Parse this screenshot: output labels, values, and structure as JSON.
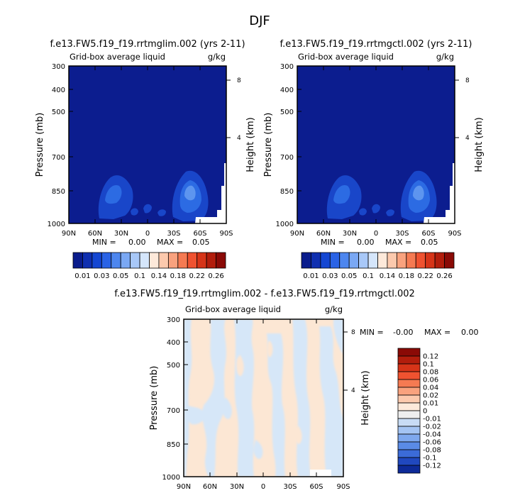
{
  "figure_title": "DJF",
  "chart_data": [
    {
      "id": "p1",
      "type": "heatmap",
      "title": "f.e13.FW5.f19_f19.rrtmglim.002 (yrs 2-11)",
      "subtitle_left": "Grid-box average liquid",
      "subtitle_right": "g/kg",
      "ylabel": "Pressure (mb)",
      "ylabel_right": "Height (km)",
      "x_ticks": [
        "90N",
        "60N",
        "30N",
        "0",
        "30S",
        "60S",
        "90S"
      ],
      "y_ticks": [
        "300",
        "400",
        "500",
        "700",
        "850",
        "1000"
      ],
      "y_ticks_right": [
        "8",
        "4"
      ],
      "min_label": "MIN =",
      "min_value": "0.00",
      "max_label": "MAX =",
      "max_value": "0.05",
      "colorbar": {
        "labels": [
          "0.01",
          "0.03",
          "0.05",
          "0.1",
          "0.14",
          "0.18",
          "0.22",
          "0.26"
        ],
        "colors": [
          "#0a1c8c",
          "#0f2fb0",
          "#1446d2",
          "#2a63e6",
          "#4d86ef",
          "#7aa8f4",
          "#a8c8f8",
          "#d5e6fb",
          "#fde9da",
          "#fcc9ad",
          "#f9a27e",
          "#f57a52",
          "#ef5230",
          "#d63418",
          "#b21d0c",
          "#8a0a06"
        ]
      },
      "field": {
        "background": "#0c1d8f",
        "enhanced": [
          "#1946c9",
          "#2c6be3",
          "#5d95ef"
        ]
      }
    },
    {
      "id": "p2",
      "type": "heatmap",
      "title": "f.e13.FW5.f19_f19.rrtmgctl.002 (yrs 2-11)",
      "subtitle_left": "Grid-box average liquid",
      "subtitle_right": "g/kg",
      "ylabel": "Pressure (mb)",
      "ylabel_right": "Height (km)",
      "x_ticks": [
        "90N",
        "60N",
        "30N",
        "0",
        "30S",
        "60S",
        "90S"
      ],
      "y_ticks": [
        "300",
        "400",
        "500",
        "700",
        "850",
        "1000"
      ],
      "y_ticks_right": [
        "8",
        "4"
      ],
      "min_label": "MIN =",
      "min_value": "0.00",
      "max_label": "MAX =",
      "max_value": "0.05",
      "colorbar": {
        "labels": [
          "0.01",
          "0.03",
          "0.05",
          "0.1",
          "0.14",
          "0.18",
          "0.22",
          "0.26"
        ],
        "colors": [
          "#0a1c8c",
          "#0f2fb0",
          "#1446d2",
          "#2a63e6",
          "#4d86ef",
          "#7aa8f4",
          "#a8c8f8",
          "#d5e6fb",
          "#fde9da",
          "#fcc9ad",
          "#f9a27e",
          "#f57a52",
          "#ef5230",
          "#d63418",
          "#b21d0c",
          "#8a0a06"
        ]
      },
      "field": {
        "background": "#0c1d8f",
        "enhanced": [
          "#1946c9",
          "#2c6be3",
          "#5d95ef"
        ]
      }
    },
    {
      "id": "p3",
      "type": "heatmap",
      "title": "f.e13.FW5.f19_f19.rrtmglim.002 - f.e13.FW5.f19_f19.rrtmgctl.002",
      "subtitle_left": "Grid-box average liquid",
      "subtitle_right": "g/kg",
      "ylabel": "Pressure (mb)",
      "ylabel_right": "Height (km)",
      "x_ticks": [
        "90N",
        "60N",
        "30N",
        "0",
        "30S",
        "60S",
        "90S"
      ],
      "y_ticks": [
        "300",
        "400",
        "500",
        "700",
        "850",
        "1000"
      ],
      "y_ticks_right": [
        "8",
        "4"
      ],
      "min_label": "MIN =",
      "min_value": "-0.00",
      "max_label": "MAX =",
      "max_value": "0.00",
      "colorbar": {
        "labels": [
          "0.12",
          "0.1",
          "0.08",
          "0.06",
          "0.04",
          "0.02",
          "0.01",
          "0",
          "-0.01",
          "-0.02",
          "-0.04",
          "-0.06",
          "-0.08",
          "-0.1",
          "-0.12"
        ],
        "colors": [
          "#8a0a06",
          "#b21d0c",
          "#d63418",
          "#ef5230",
          "#f57a52",
          "#f9a27e",
          "#fcc9ad",
          "#fde9da",
          "#eeeeee",
          "#c8dcf5",
          "#a4c4f3",
          "#7ea8ee",
          "#5a8be6",
          "#3b6bd8",
          "#2048bf",
          "#0d2a98"
        ]
      },
      "field": {
        "background": "#fce7d4",
        "negative": "#d6e7f8"
      }
    }
  ]
}
